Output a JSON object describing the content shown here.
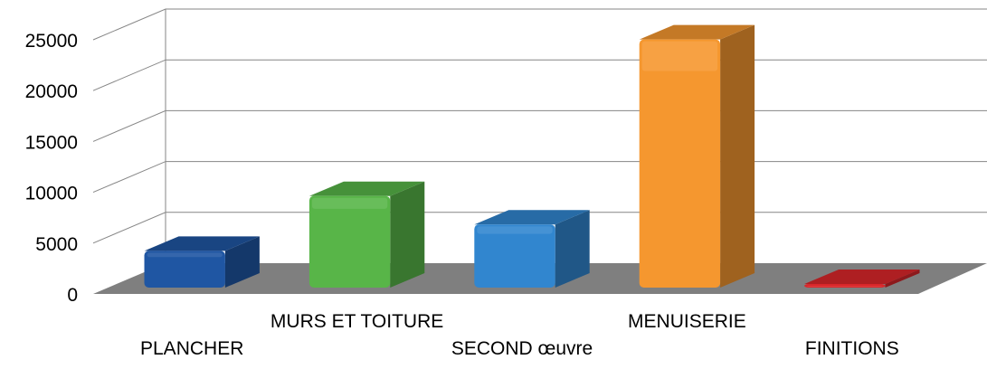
{
  "chart_data": {
    "type": "bar",
    "style": "3d-column",
    "title": "",
    "xlabel": "",
    "ylabel": "",
    "ylim": [
      0,
      25000
    ],
    "yticks": [
      0,
      5000,
      10000,
      15000,
      20000,
      25000
    ],
    "grid": true,
    "legend": "none",
    "categories": [
      "PLANCHER",
      "MURS ET TOITURE",
      "SECOND œuvre",
      "MENUISERIE",
      "FINITIONS"
    ],
    "values": [
      3700,
      9100,
      6300,
      24500,
      200
    ],
    "colors": [
      "#1f56a3",
      "#58b548",
      "#3186cf",
      "#f5972f",
      "#d9272b"
    ],
    "floor_color": "#7f7f7f",
    "grid_color": "#868686"
  }
}
